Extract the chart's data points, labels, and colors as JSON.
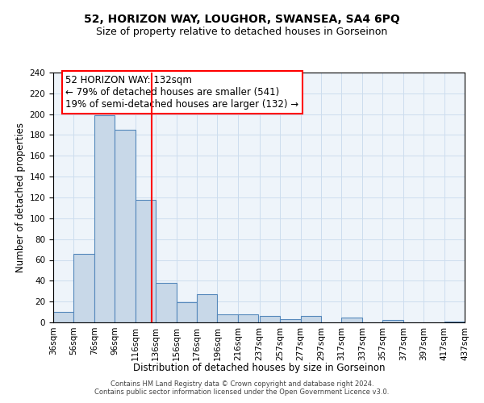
{
  "title": "52, HORIZON WAY, LOUGHOR, SWANSEA, SA4 6PQ",
  "subtitle": "Size of property relative to detached houses in Gorseinon",
  "xlabel": "Distribution of detached houses by size in Gorseinon",
  "ylabel": "Number of detached properties",
  "bin_edges": [
    36,
    56,
    76,
    96,
    116,
    136,
    156,
    176,
    196,
    216,
    237,
    257,
    277,
    297,
    317,
    337,
    357,
    377,
    397,
    417,
    437
  ],
  "bin_labels": [
    "36sqm",
    "56sqm",
    "76sqm",
    "96sqm",
    "116sqm",
    "136sqm",
    "156sqm",
    "176sqm",
    "196sqm",
    "216sqm",
    "237sqm",
    "257sqm",
    "277sqm",
    "297sqm",
    "317sqm",
    "337sqm",
    "357sqm",
    "377sqm",
    "397sqm",
    "417sqm",
    "437sqm"
  ],
  "counts": [
    10,
    66,
    199,
    185,
    118,
    38,
    19,
    27,
    8,
    8,
    6,
    3,
    6,
    0,
    5,
    0,
    2,
    0,
    0,
    1
  ],
  "bar_color": "#c8d8e8",
  "bar_edge_color": "#5588bb",
  "vline_x": 132,
  "vline_color": "red",
  "annotation_line1": "52 HORIZON WAY: 132sqm",
  "annotation_line2": "← 79% of detached houses are smaller (541)",
  "annotation_line3": "19% of semi-detached houses are larger (132) →",
  "annotation_box_facecolor": "white",
  "annotation_box_edgecolor": "red",
  "ylim": [
    0,
    240
  ],
  "yticks": [
    0,
    20,
    40,
    60,
    80,
    100,
    120,
    140,
    160,
    180,
    200,
    220,
    240
  ],
  "grid_color": "#ccddee",
  "bg_color": "#eef4fa",
  "footer1": "Contains HM Land Registry data © Crown copyright and database right 2024.",
  "footer2": "Contains public sector information licensed under the Open Government Licence v3.0.",
  "title_fontsize": 10,
  "subtitle_fontsize": 9,
  "label_fontsize": 8.5,
  "tick_fontsize": 7.5,
  "annotation_fontsize": 8.5,
  "footer_fontsize": 6.0
}
